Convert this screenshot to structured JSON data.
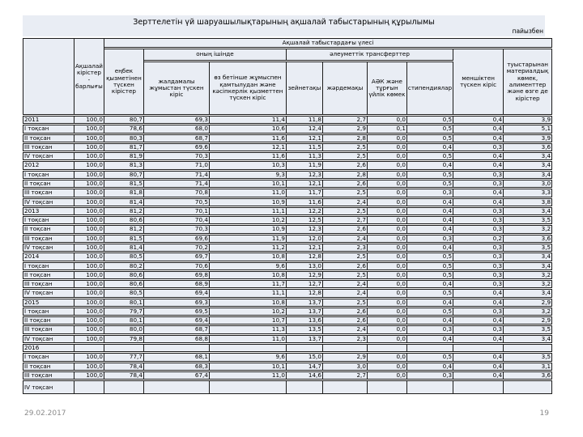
{
  "title": "Зерттелетін үй шаруашылықтарының ақшалай табыстарының құрылымы",
  "unit_label": "пайызбен",
  "footer": {
    "date": "29.02.2017",
    "page": "19"
  },
  "colors": {
    "cell_bg": "#e9edf4",
    "border": "#1c1c1c"
  },
  "table": {
    "header": {
      "total": "Ақшалай кірістер - барлығы",
      "share_group": "Ақшалай табыстардағы үлесі",
      "labor_income": "еңбек қызметінен түскен кірістер",
      "of_which": "оның ішінде",
      "hired_work": "жалдамалы жұмыстан түскен кіріс",
      "self_employment": "өз бетінше жұмыспен қамтылудан және кәсіпкерлік қызметтен түскен кіріс",
      "social_transfers": "әлеуметтік трансферттер",
      "pension": "зейнетақы",
      "benefits": "жәрдемақы",
      "asp_housing_aid": "АӘК және тұрғын үйлік көмек",
      "scholarships": "стипендиялар",
      "property_income": "меншіктен түскен кіріс",
      "relatives_aid": "туыстарынан материалдық көмек, алименттер және өзге де кірістер"
    },
    "rows": [
      {
        "label": "2011",
        "year": true,
        "values": [
          "100,0",
          "80,7",
          "69,3",
          "11,4",
          "11,8",
          "2,7",
          "0,0",
          "0,5",
          "0,4",
          "3,9"
        ]
      },
      {
        "label": "I тоқсан",
        "year": false,
        "values": [
          "100,0",
          "78,6",
          "68,0",
          "10,6",
          "12,4",
          "2,9",
          "0,1",
          "0,5",
          "0,4",
          "5,1"
        ]
      },
      {
        "label": "II тоқсан",
        "year": false,
        "values": [
          "100,0",
          "80,3",
          "68,7",
          "11,6",
          "12,1",
          "2,8",
          "0,0",
          "0,5",
          "0,4",
          "3,9"
        ]
      },
      {
        "label": "III тоқсан",
        "year": false,
        "values": [
          "100,0",
          "81,7",
          "69,6",
          "12,1",
          "11,5",
          "2,5",
          "0,0",
          "0,4",
          "0,3",
          "3,6"
        ]
      },
      {
        "label": "IV тоқсан",
        "year": false,
        "values": [
          "100,0",
          "81,9",
          "70,3",
          "11,6",
          "11,3",
          "2,5",
          "0,0",
          "0,5",
          "0,4",
          "3,4"
        ]
      },
      {
        "label": "2012",
        "year": true,
        "values": [
          "100,0",
          "81,3",
          "71,0",
          "10,3",
          "11,9",
          "2,6",
          "0,0",
          "0,4",
          "0,4",
          "3,4"
        ]
      },
      {
        "label": "I тоқсан",
        "year": false,
        "values": [
          "100,0",
          "80,7",
          "71,4",
          "9,3",
          "12,3",
          "2,8",
          "0,0",
          "0,5",
          "0,3",
          "3,4"
        ]
      },
      {
        "label": "II тоқсан",
        "year": false,
        "values": [
          "100,0",
          "81,5",
          "71,4",
          "10,1",
          "12,1",
          "2,6",
          "0,0",
          "0,5",
          "0,3",
          "3,0"
        ]
      },
      {
        "label": "III тоқсан",
        "year": false,
        "values": [
          "100,0",
          "81,8",
          "70,8",
          "11,0",
          "11,7",
          "2,5",
          "0,0",
          "0,3",
          "0,4",
          "3,3"
        ]
      },
      {
        "label": "IV тоқсан",
        "year": false,
        "values": [
          "100,0",
          "81,4",
          "70,5",
          "10,9",
          "11,6",
          "2,4",
          "0,0",
          "0,4",
          "0,4",
          "3,8"
        ]
      },
      {
        "label": "2013",
        "year": true,
        "values": [
          "100,0",
          "81,2",
          "70,1",
          "11,1",
          "12,2",
          "2,5",
          "0,0",
          "0,4",
          "0,3",
          "3,4"
        ]
      },
      {
        "label": "I тоқсан",
        "year": false,
        "values": [
          "100,0",
          "80,6",
          "70,4",
          "10,2",
          "12,5",
          "2,7",
          "0,0",
          "0,4",
          "0,3",
          "3,5"
        ]
      },
      {
        "label": "II тоқсан",
        "year": false,
        "values": [
          "100,0",
          "81,2",
          "70,3",
          "10,9",
          "12,3",
          "2,6",
          "0,0",
          "0,4",
          "0,3",
          "3,2"
        ]
      },
      {
        "label": "III тоқсан",
        "year": false,
        "values": [
          "100,0",
          "81,5",
          "69,6",
          "11,9",
          "12,0",
          "2,4",
          "0,0",
          "0,3",
          "0,2",
          "3,6"
        ]
      },
      {
        "label": "IV тоқсан",
        "year": false,
        "values": [
          "100,0",
          "81,4",
          "70,2",
          "11,2",
          "12,1",
          "2,3",
          "0,0",
          "0,4",
          "0,3",
          "3,5"
        ]
      },
      {
        "label": "2014",
        "year": true,
        "values": [
          "100,0",
          "80,5",
          "69,7",
          "10,8",
          "12,8",
          "2,5",
          "0,0",
          "0,5",
          "0,3",
          "3,4"
        ]
      },
      {
        "label": "I тоқсан",
        "year": false,
        "values": [
          "100,0",
          "80,2",
          "70,6",
          "9,6",
          "13,0",
          "2,6",
          "0,0",
          "0,5",
          "0,3",
          "3,4"
        ]
      },
      {
        "label": "II тоқсан",
        "year": false,
        "values": [
          "100,0",
          "80,6",
          "69,8",
          "10,8",
          "12,9",
          "2,5",
          "0,0",
          "0,5",
          "0,3",
          "3,2"
        ]
      },
      {
        "label": "III тоқсан",
        "year": false,
        "values": [
          "100,0",
          "80,6",
          "68,9",
          "11,7",
          "12,7",
          "2,4",
          "0,0",
          "0,4",
          "0,3",
          "3,2"
        ]
      },
      {
        "label": "IV тоқсан",
        "year": false,
        "values": [
          "100,0",
          "80,5",
          "69,4",
          "11,1",
          "12,8",
          "2,4",
          "0,0",
          "0,5",
          "0,4",
          "3,4"
        ]
      },
      {
        "label": "2015",
        "year": true,
        "values": [
          "100,0",
          "80,1",
          "69,3",
          "10,8",
          "13,7",
          "2,5",
          "0,0",
          "0,4",
          "0,4",
          "2,9"
        ]
      },
      {
        "label": "I тоқсан",
        "year": false,
        "values": [
          "100,0",
          "79,7",
          "69,5",
          "10,2",
          "13,7",
          "2,6",
          "0,0",
          "0,5",
          "0,3",
          "3,2"
        ]
      },
      {
        "label": "II тоқсан",
        "year": false,
        "values": [
          "100,0",
          "80,1",
          "69,4",
          "10,7",
          "13,6",
          "2,6",
          "0,0",
          "0,4",
          "0,4",
          "2,9"
        ]
      },
      {
        "label": "III тоқсан",
        "year": false,
        "values": [
          "100,0",
          "80,0",
          "68,7",
          "11,3",
          "13,5",
          "2,4",
          "0,0",
          "0,3",
          "0,3",
          "3,5"
        ]
      },
      {
        "label": "IV тоқсан",
        "year": false,
        "values": [
          "100,0",
          "79,8",
          "68,8",
          "11,0",
          "13,7",
          "2,3",
          "0,0",
          "0,4",
          "0,4",
          "3,4"
        ]
      },
      {
        "label": "2016",
        "year": true,
        "values": [
          "",
          "",
          "",
          "",
          "",
          "",
          "",
          "",
          "",
          ""
        ]
      },
      {
        "label": "I тоқсан",
        "year": false,
        "values": [
          "100,0",
          "77,7",
          "68,1",
          "9,6",
          "15,0",
          "2,9",
          "0,0",
          "0,5",
          "0,4",
          "3,5"
        ]
      },
      {
        "label": "II тоқсан",
        "year": false,
        "values": [
          "100,0",
          "78,4",
          "68,3",
          "10,1",
          "14,7",
          "3,0",
          "0,0",
          "0,4",
          "0,4",
          "3,1"
        ]
      },
      {
        "label": "III тоқсан",
        "year": false,
        "values": [
          "100,0",
          "78,4",
          "67,4",
          "11,0",
          "14,6",
          "2,7",
          "0,0",
          "0,3",
          "0,4",
          "3,6"
        ]
      },
      {
        "label": "IV тоқсан",
        "year": false,
        "tall": true,
        "values": [
          "",
          "",
          "",
          "",
          "",
          "",
          "",
          "",
          "",
          ""
        ]
      }
    ]
  }
}
